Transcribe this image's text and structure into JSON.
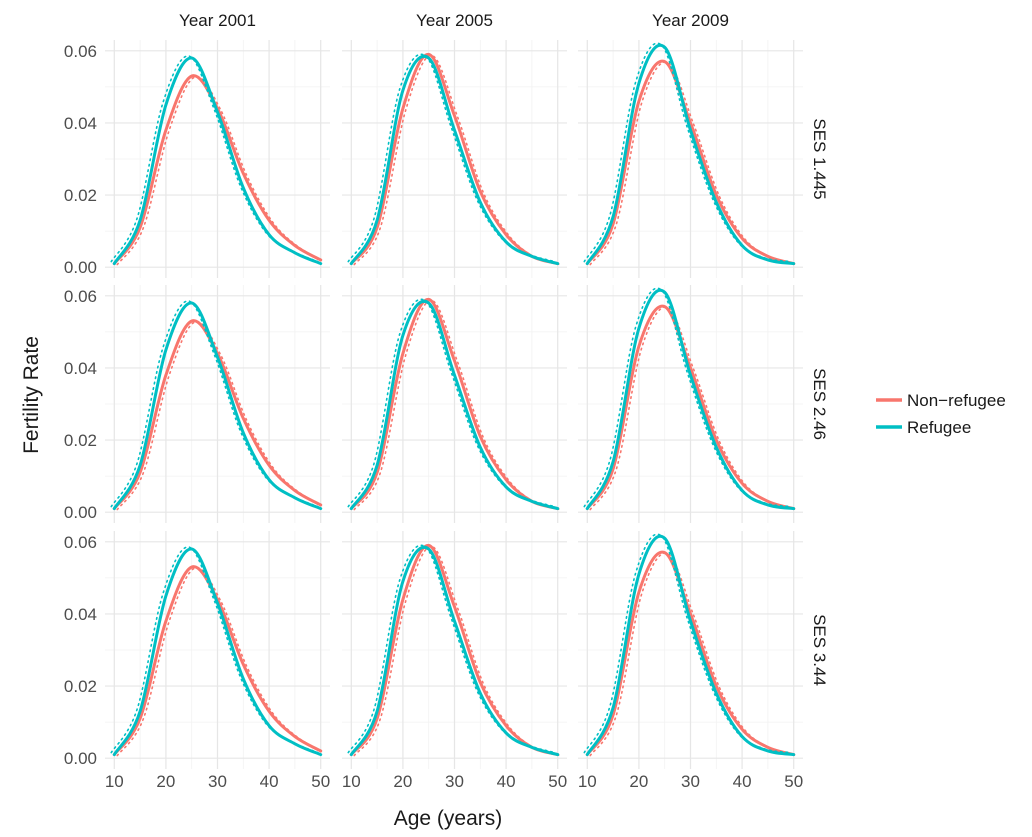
{
  "chart_data": {
    "type": "line",
    "xlabel": "Age (years)",
    "ylabel": "Fertility Rate",
    "xlim": [
      10,
      50
    ],
    "ylim": [
      0,
      0.06
    ],
    "x_ticks": [
      10,
      20,
      30,
      40,
      50
    ],
    "y_ticks": [
      "0.00",
      "0.02",
      "0.04",
      "0.06"
    ],
    "grid": true,
    "legend_position": "right",
    "col_facets": [
      "Year 2001",
      "Year 2005",
      "Year 2009"
    ],
    "row_facets": [
      "SES 1.445",
      "SES 2.46",
      "SES 3.44"
    ],
    "series_names": [
      "Non−refugee",
      "Refugee"
    ],
    "colors": {
      "Non−refugee": "#F8766D",
      "Refugee": "#00BFC4"
    },
    "x": [
      10,
      15,
      20,
      25,
      30,
      35,
      40,
      45,
      50
    ],
    "panels": [
      {
        "col": "Year 2001",
        "row": "SES 1.445",
        "series": [
          {
            "name": "Non−refugee",
            "values": [
              0.001,
              0.011,
              0.038,
              0.053,
              0.044,
              0.026,
              0.013,
              0.006,
              0.002
            ]
          },
          {
            "name": "Refugee",
            "values": [
              0.001,
              0.013,
              0.045,
              0.058,
              0.043,
              0.022,
              0.009,
              0.004,
              0.001
            ]
          }
        ]
      },
      {
        "col": "Year 2005",
        "row": "SES 1.445",
        "series": [
          {
            "name": "Non−refugee",
            "values": [
              0.001,
              0.011,
              0.044,
              0.059,
              0.042,
              0.021,
              0.009,
              0.003,
              0.001
            ]
          },
          {
            "name": "Refugee",
            "values": [
              0.001,
              0.013,
              0.049,
              0.058,
              0.038,
              0.018,
              0.007,
              0.003,
              0.001
            ]
          }
        ]
      },
      {
        "col": "Year 2009",
        "row": "SES 1.445",
        "series": [
          {
            "name": "Non−refugee",
            "values": [
              0.001,
              0.012,
              0.046,
              0.057,
              0.04,
              0.02,
              0.008,
              0.003,
              0.001
            ]
          },
          {
            "name": "Refugee",
            "values": [
              0.001,
              0.014,
              0.051,
              0.061,
              0.038,
              0.018,
              0.006,
              0.002,
              0.001
            ]
          }
        ]
      },
      {
        "col": "Year 2001",
        "row": "SES 2.46",
        "series": [
          {
            "name": "Non−refugee",
            "values": [
              0.001,
              0.011,
              0.038,
              0.053,
              0.044,
              0.026,
              0.013,
              0.006,
              0.002
            ]
          },
          {
            "name": "Refugee",
            "values": [
              0.001,
              0.013,
              0.045,
              0.058,
              0.043,
              0.022,
              0.009,
              0.004,
              0.001
            ]
          }
        ]
      },
      {
        "col": "Year 2005",
        "row": "SES 2.46",
        "series": [
          {
            "name": "Non−refugee",
            "values": [
              0.001,
              0.011,
              0.044,
              0.059,
              0.042,
              0.021,
              0.009,
              0.003,
              0.001
            ]
          },
          {
            "name": "Refugee",
            "values": [
              0.001,
              0.013,
              0.049,
              0.058,
              0.038,
              0.018,
              0.007,
              0.003,
              0.001
            ]
          }
        ]
      },
      {
        "col": "Year 2009",
        "row": "SES 2.46",
        "series": [
          {
            "name": "Non−refugee",
            "values": [
              0.001,
              0.012,
              0.046,
              0.057,
              0.04,
              0.02,
              0.008,
              0.003,
              0.001
            ]
          },
          {
            "name": "Refugee",
            "values": [
              0.001,
              0.014,
              0.051,
              0.061,
              0.038,
              0.018,
              0.006,
              0.002,
              0.001
            ]
          }
        ]
      },
      {
        "col": "Year 2001",
        "row": "SES 3.44",
        "series": [
          {
            "name": "Non−refugee",
            "values": [
              0.001,
              0.011,
              0.038,
              0.053,
              0.044,
              0.026,
              0.013,
              0.006,
              0.002
            ]
          },
          {
            "name": "Refugee",
            "values": [
              0.001,
              0.013,
              0.045,
              0.058,
              0.043,
              0.022,
              0.009,
              0.004,
              0.001
            ]
          }
        ]
      },
      {
        "col": "Year 2005",
        "row": "SES 3.44",
        "series": [
          {
            "name": "Non−refugee",
            "values": [
              0.001,
              0.011,
              0.044,
              0.059,
              0.042,
              0.021,
              0.009,
              0.003,
              0.001
            ]
          },
          {
            "name": "Refugee",
            "values": [
              0.001,
              0.013,
              0.049,
              0.058,
              0.038,
              0.018,
              0.007,
              0.003,
              0.001
            ]
          }
        ]
      },
      {
        "col": "Year 2009",
        "row": "SES 3.44",
        "series": [
          {
            "name": "Non−refugee",
            "values": [
              0.001,
              0.012,
              0.046,
              0.057,
              0.04,
              0.02,
              0.008,
              0.003,
              0.001
            ]
          },
          {
            "name": "Refugee",
            "values": [
              0.001,
              0.014,
              0.051,
              0.061,
              0.038,
              0.018,
              0.006,
              0.002,
              0.001
            ]
          }
        ]
      }
    ]
  }
}
